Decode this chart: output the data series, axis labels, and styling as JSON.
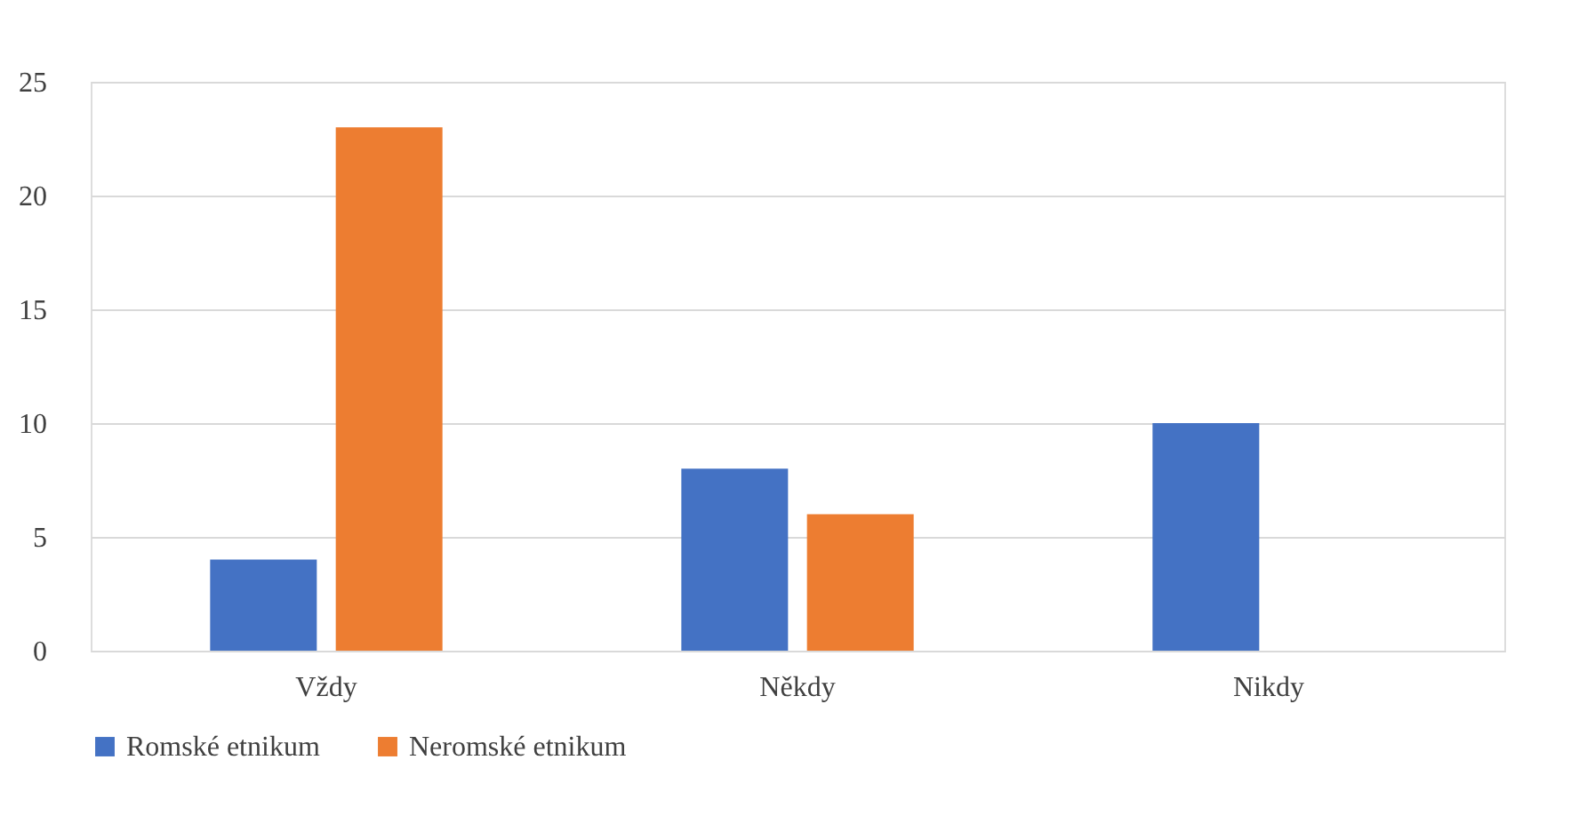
{
  "chart_data": {
    "type": "bar",
    "categories": [
      "Vždy",
      "Někdy",
      "Nikdy"
    ],
    "series": [
      {
        "name": "Romské etnikum",
        "color": "#4472c4",
        "values": [
          4,
          8,
          10
        ]
      },
      {
        "name": "Neromské etnikum",
        "color": "#ed7d31",
        "values": [
          23,
          6,
          0
        ]
      }
    ],
    "ylim": [
      0,
      25
    ],
    "yticks": [
      0,
      5,
      10,
      15,
      20,
      25
    ],
    "grid": "y",
    "legend": "bottom"
  }
}
